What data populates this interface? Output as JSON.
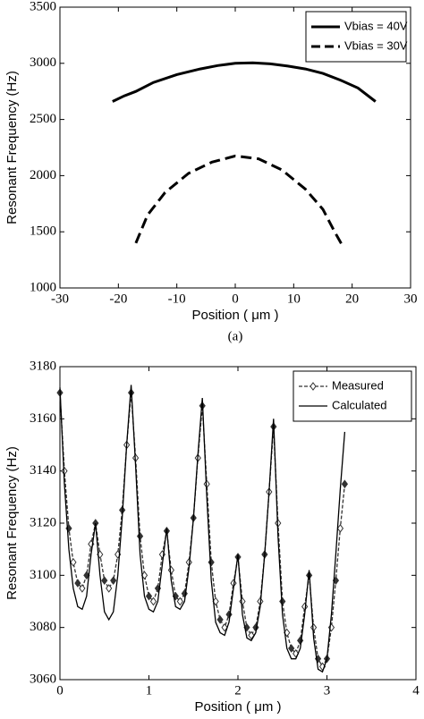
{
  "chart_data": [
    {
      "type": "line",
      "xlabel": "Position ( μm )",
      "ylabel": "Resonant Frequency (Hz)",
      "caption": "(a)",
      "xlim": [
        -30,
        30
      ],
      "xticks": [
        -30,
        -20,
        -10,
        0,
        10,
        20,
        30
      ],
      "ylim": [
        1000,
        3500
      ],
      "yticks": [
        1000,
        1500,
        2000,
        2500,
        3000,
        3500
      ],
      "legend": "upper right",
      "series": [
        {
          "name": "Vbias = 40V",
          "color": "#000000",
          "line_style": "solid",
          "x": [
            -21,
            -19,
            -17,
            -14,
            -10,
            -6,
            -3,
            0,
            3,
            6,
            9,
            12,
            15,
            18,
            21,
            24
          ],
          "values": [
            2660,
            2710,
            2750,
            2830,
            2900,
            2950,
            2980,
            3000,
            3005,
            2995,
            2975,
            2950,
            2910,
            2850,
            2780,
            2660
          ]
        },
        {
          "name": "Vbias = 30V",
          "color": "#000000",
          "line_style": "dashed",
          "x": [
            -17,
            -15,
            -12,
            -8,
            -4,
            0,
            4,
            8,
            12,
            15,
            17,
            18.3
          ],
          "values": [
            1400,
            1650,
            1850,
            2020,
            2120,
            2175,
            2150,
            2050,
            1880,
            1700,
            1500,
            1380
          ]
        }
      ]
    },
    {
      "type": "line",
      "xlabel": "Position ( μm )",
      "ylabel": "Resonant Frequency (Hz)",
      "caption": "(b)",
      "xlim": [
        0,
        4
      ],
      "xticks": [
        0,
        1,
        2,
        3,
        4
      ],
      "ylim": [
        3060,
        3180
      ],
      "yticks": [
        3060,
        3080,
        3100,
        3120,
        3140,
        3160,
        3180
      ],
      "legend": "upper right",
      "x": [
        0,
        0.05,
        0.1,
        0.15,
        0.2,
        0.25,
        0.3,
        0.35,
        0.4,
        0.45,
        0.5,
        0.55,
        0.6,
        0.65,
        0.7,
        0.75,
        0.8,
        0.85,
        0.9,
        0.95,
        1.0,
        1.05,
        1.1,
        1.15,
        1.2,
        1.25,
        1.3,
        1.35,
        1.4,
        1.45,
        1.5,
        1.55,
        1.6,
        1.65,
        1.7,
        1.75,
        1.8,
        1.85,
        1.9,
        1.95,
        2.0,
        2.05,
        2.1,
        2.15,
        2.2,
        2.25,
        2.3,
        2.35,
        2.4,
        2.45,
        2.5,
        2.55,
        2.6,
        2.65,
        2.7,
        2.75,
        2.8,
        2.85,
        2.9,
        2.95,
        3.0,
        3.05,
        3.1,
        3.15,
        3.2
      ],
      "series": [
        {
          "name": "Measured",
          "color": "#333333",
          "line_style": "dashed",
          "marker": "diamond",
          "values": [
            3170,
            3140,
            3118,
            3105,
            3097,
            3095,
            3100,
            3112,
            3120,
            3108,
            3098,
            3095,
            3098,
            3108,
            3125,
            3150,
            3170,
            3145,
            3115,
            3100,
            3092,
            3090,
            3095,
            3108,
            3117,
            3102,
            3092,
            3090,
            3093,
            3105,
            3122,
            3145,
            3165,
            3135,
            3105,
            3090,
            3083,
            3080,
            3085,
            3097,
            3107,
            3090,
            3080,
            3077,
            3080,
            3090,
            3108,
            3132,
            3157,
            3120,
            3090,
            3078,
            3072,
            3070,
            3075,
            3088,
            3100,
            3080,
            3068,
            3065,
            3068,
            3080,
            3098,
            3118,
            3135
          ]
        },
        {
          "name": "Calculated",
          "color": "#000000",
          "line_style": "solid",
          "values": [
            3172,
            3135,
            3110,
            3095,
            3088,
            3087,
            3092,
            3108,
            3120,
            3100,
            3086,
            3083,
            3086,
            3100,
            3122,
            3150,
            3173,
            3142,
            3108,
            3092,
            3087,
            3086,
            3090,
            3104,
            3118,
            3098,
            3088,
            3087,
            3090,
            3103,
            3122,
            3146,
            3168,
            3130,
            3098,
            3082,
            3078,
            3077,
            3082,
            3095,
            3108,
            3085,
            3076,
            3075,
            3078,
            3088,
            3108,
            3132,
            3160,
            3115,
            3085,
            3072,
            3068,
            3068,
            3072,
            3085,
            3102,
            3076,
            3064,
            3063,
            3068,
            3085,
            3108,
            3133,
            3155
          ]
        }
      ]
    }
  ]
}
